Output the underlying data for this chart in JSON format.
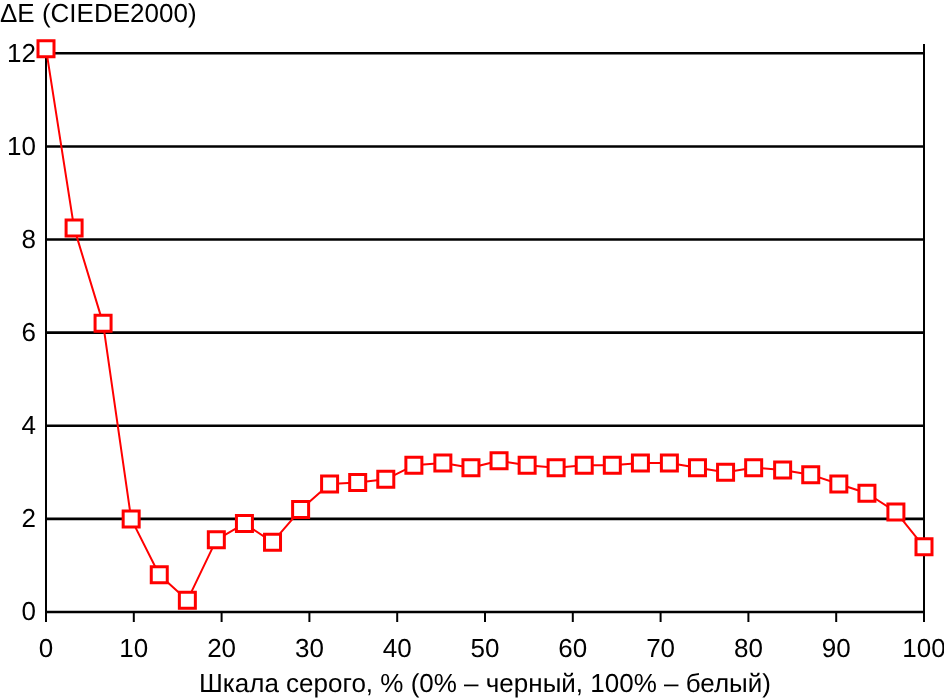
{
  "chart_data": {
    "type": "line",
    "ylabel": "ΔE (CIEDE2000)",
    "xlabel": "Шкала серого, % (0% – черный, 100% – белый)",
    "x": [
      0,
      3.2,
      6.5,
      9.7,
      12.9,
      16.1,
      19.4,
      22.6,
      25.8,
      29.0,
      32.3,
      35.5,
      38.7,
      41.9,
      45.2,
      48.4,
      51.6,
      54.8,
      58.1,
      61.3,
      64.5,
      67.7,
      71.0,
      74.2,
      77.4,
      80.6,
      83.9,
      87.1,
      90.3,
      93.5,
      96.8,
      100
    ],
    "series": [
      {
        "color": "#ff0000",
        "values": [
          12.1,
          8.25,
          6.2,
          2.0,
          0.8,
          0.25,
          1.55,
          1.9,
          1.5,
          2.2,
          2.75,
          2.78,
          2.85,
          3.15,
          3.2,
          3.1,
          3.25,
          3.15,
          3.1,
          3.15,
          3.15,
          3.2,
          3.2,
          3.1,
          3.0,
          3.1,
          3.05,
          2.95,
          2.75,
          2.55,
          2.15,
          1.4
        ]
      }
    ],
    "xlim": [
      0,
      100
    ],
    "xticks": [
      0,
      10,
      20,
      30,
      40,
      50,
      60,
      70,
      80,
      90,
      100
    ],
    "ylim": [
      0,
      12.2
    ],
    "yticks": [
      0,
      2,
      4,
      6,
      8,
      10,
      12
    ],
    "grid": "y",
    "marker": "square",
    "line_style": "solid"
  }
}
